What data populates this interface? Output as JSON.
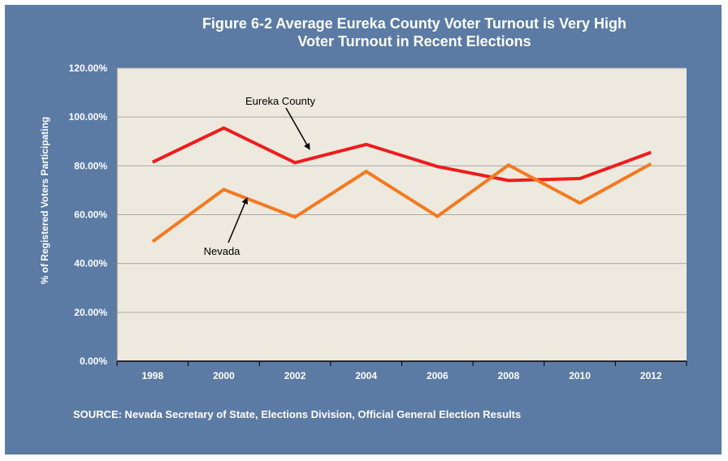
{
  "title_line1": "Figure 6-2 Average Eureka County Voter Turnout is Very High",
  "title_line2": "Voter Turnout in Recent Elections",
  "source": "SOURCE: Nevada Secretary of State, Elections Division, Official General Election Results",
  "chart_data": {
    "type": "line",
    "title": "Figure 6-2 Average Eureka County Voter Turnout is Very High Voter Turnout in Recent Elections",
    "xlabel": "",
    "ylabel": "% of Registered Voters Participating",
    "categories": [
      "1998",
      "2000",
      "2002",
      "2004",
      "2006",
      "2008",
      "2010",
      "2012"
    ],
    "y_ticks": [
      "0.00%",
      "20.00%",
      "40.00%",
      "60.00%",
      "80.00%",
      "100.00%",
      "120.00%"
    ],
    "ylim": [
      0,
      120
    ],
    "grid": true,
    "series": [
      {
        "name": "Eureka County",
        "color": "#ee1c1c",
        "values": [
          81.5,
          95.5,
          81.3,
          88.8,
          79.7,
          74.0,
          74.8,
          85.5
        ]
      },
      {
        "name": "Nevada",
        "color": "#f47920",
        "values": [
          49.0,
          70.3,
          59.0,
          77.7,
          59.3,
          80.3,
          64.8,
          80.8
        ]
      }
    ],
    "annotations": [
      {
        "text": "Eureka County",
        "series": "Eureka County",
        "arrow_to_category": "2003"
      },
      {
        "text": "Nevada",
        "series": "Nevada",
        "arrow_to_category": "2000"
      }
    ],
    "plot_background": "#ede9de",
    "frame_background": "#5b7ba5"
  }
}
